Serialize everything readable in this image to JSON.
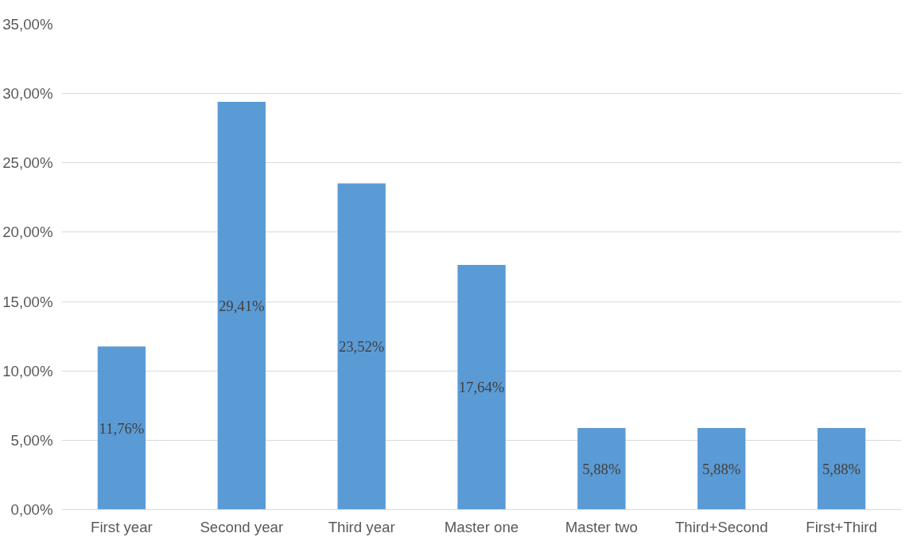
{
  "chart_data": {
    "type": "bar",
    "categories": [
      "First year",
      "Second year",
      "Third year",
      "Master one",
      "Master two",
      "Third+Second",
      "First+Third"
    ],
    "values": [
      11.76,
      29.41,
      23.52,
      17.64,
      5.88,
      5.88,
      5.88
    ],
    "value_labels": [
      "11,76%",
      "29,41%",
      "23,52%",
      "17,64%",
      "5,88%",
      "5,88%",
      "5,88%"
    ],
    "color": "#5b9bd5",
    "ylim": [
      0,
      35
    ],
    "yticks": [
      {
        "value": 0,
        "label": "0,00%"
      },
      {
        "value": 5,
        "label": "5,00%"
      },
      {
        "value": 10,
        "label": "10,00%"
      },
      {
        "value": 15,
        "label": "15,00%"
      },
      {
        "value": 20,
        "label": "20,00%"
      },
      {
        "value": 25,
        "label": "25,00%"
      },
      {
        "value": 30,
        "label": "30,00%"
      },
      {
        "value": 35,
        "label": "35,00%"
      }
    ],
    "grid": "y"
  }
}
